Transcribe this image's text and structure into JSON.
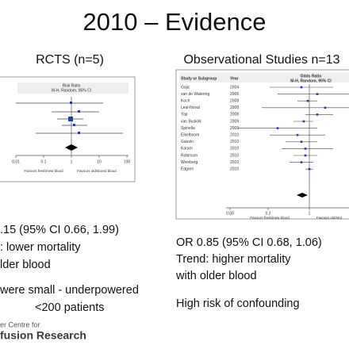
{
  "header": {
    "title": "2010 – Evidence"
  },
  "left": {
    "heading": "RCTS (n=5)",
    "plot": {
      "measure": "Risk Ratio",
      "method": "M-H, Random, 95% CI",
      "axis_labels": [
        "0.01",
        "0.1",
        "1",
        "10",
        "100"
      ],
      "favours_left": "Favours fresh/new blood",
      "favours_right": "Favours old/stored blood"
    },
    "lines": [
      ".15 (95% CI 0.66, 1.99)",
      ": lower mortality",
      "lder blood"
    ],
    "notes": [
      "were small - underpowered",
      "<200 patients"
    ]
  },
  "right": {
    "heading": "Observational Studies n=13",
    "plot": {
      "study_header": "Study or Subgroup",
      "year_header": "Year",
      "measure": "Odds Ratio",
      "method": "M-H, Random, 95% CI",
      "studies": [
        {
          "name": "Gajic",
          "year": "2004"
        },
        {
          "name": "van de Watering",
          "year": "2006"
        },
        {
          "name": "Koch",
          "year": "2008"
        },
        {
          "name": "Leal-Noval",
          "year": "2008"
        },
        {
          "name": "Yap",
          "year": "2008"
        },
        {
          "name": "van Buskirk",
          "year": "2009"
        },
        {
          "name": "Spinella",
          "year": "2009"
        },
        {
          "name": "Eikelboom",
          "year": "2010"
        },
        {
          "name": "Gauvin",
          "year": "2010"
        },
        {
          "name": "Karam",
          "year": "2010"
        },
        {
          "name": "Robinson",
          "year": "2010"
        },
        {
          "name": "Weinberg",
          "year": "2010"
        },
        {
          "name": "Edgren",
          "year": "2010"
        }
      ],
      "axis_labels": [
        "0.05",
        "0.2",
        "1"
      ],
      "favours_left": "Favours fresh/new blood",
      "favours_right": "Favours old/stor"
    },
    "lines": [
      "OR 0.85 (95% CI 0.68, 1.06)",
      "Trend: higher mortality",
      "with older blood"
    ],
    "notes": [
      "High risk of confounding"
    ]
  },
  "logo": {
    "line1": "er Centre for",
    "line2": "fusion Research"
  }
}
